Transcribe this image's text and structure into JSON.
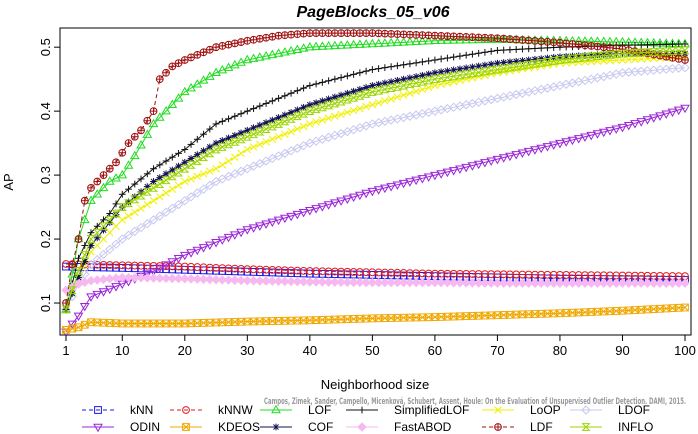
{
  "chart_data": {
    "type": "line",
    "title": "PageBlocks_05_v06",
    "xlabel": "Neighborhood size",
    "ylabel": "AP",
    "xlim": [
      1,
      100
    ],
    "ylim": [
      0.05,
      0.53
    ],
    "xticks": [
      "1",
      "10",
      "20",
      "30",
      "40",
      "50",
      "60",
      "70",
      "80",
      "90",
      "100"
    ],
    "yticks": [
      "0.1",
      "0.2",
      "0.3",
      "0.4",
      "0.5"
    ],
    "legend_placement": "bottom",
    "credit": "Campos, Zimek, Sander, Campello, Micenková, Schubert, Assent, Houle: On the Evaluation of Unsupervised Outlier Detection. DAMI, 2015.",
    "series": [
      {
        "name": "kNN",
        "color": "#1a1ae6",
        "marker": "square",
        "dash": "4,3",
        "points": [
          [
            1,
            0.157
          ],
          [
            5,
            0.156
          ],
          [
            10,
            0.155
          ],
          [
            20,
            0.152
          ],
          [
            30,
            0.149
          ],
          [
            40,
            0.146
          ],
          [
            50,
            0.144
          ],
          [
            60,
            0.142
          ],
          [
            70,
            0.14
          ],
          [
            80,
            0.138
          ],
          [
            90,
            0.137
          ],
          [
            100,
            0.136
          ]
        ]
      },
      {
        "name": "kNNW",
        "color": "#e31a1c",
        "marker": "circle",
        "dash": "4,3",
        "points": [
          [
            1,
            0.161
          ],
          [
            5,
            0.16
          ],
          [
            10,
            0.159
          ],
          [
            20,
            0.157
          ],
          [
            30,
            0.153
          ],
          [
            40,
            0.15
          ],
          [
            50,
            0.148
          ],
          [
            60,
            0.146
          ],
          [
            70,
            0.145
          ],
          [
            80,
            0.144
          ],
          [
            90,
            0.143
          ],
          [
            100,
            0.142
          ]
        ]
      },
      {
        "name": "LOF",
        "color": "#1fdc1f",
        "marker": "triangle-up",
        "dash": "",
        "points": [
          [
            1,
            0.09
          ],
          [
            3,
            0.2
          ],
          [
            5,
            0.26
          ],
          [
            8,
            0.29
          ],
          [
            10,
            0.3
          ],
          [
            12,
            0.33
          ],
          [
            15,
            0.38
          ],
          [
            18,
            0.41
          ],
          [
            20,
            0.43
          ],
          [
            25,
            0.46
          ],
          [
            30,
            0.48
          ],
          [
            35,
            0.49
          ],
          [
            40,
            0.5
          ],
          [
            50,
            0.505
          ],
          [
            60,
            0.51
          ],
          [
            70,
            0.512
          ],
          [
            80,
            0.51
          ],
          [
            90,
            0.508
          ],
          [
            100,
            0.505
          ]
        ]
      },
      {
        "name": "SimplifiedLOF",
        "color": "#111111",
        "marker": "plus",
        "dash": "",
        "points": [
          [
            1,
            0.09
          ],
          [
            3,
            0.17
          ],
          [
            5,
            0.21
          ],
          [
            8,
            0.24
          ],
          [
            10,
            0.27
          ],
          [
            15,
            0.31
          ],
          [
            20,
            0.34
          ],
          [
            25,
            0.38
          ],
          [
            30,
            0.4
          ],
          [
            35,
            0.42
          ],
          [
            40,
            0.44
          ],
          [
            50,
            0.465
          ],
          [
            60,
            0.48
          ],
          [
            70,
            0.495
          ],
          [
            80,
            0.5
          ],
          [
            90,
            0.503
          ],
          [
            100,
            0.505
          ]
        ]
      },
      {
        "name": "LoOP",
        "color": "#f0f000",
        "marker": "cross",
        "dash": "",
        "points": [
          [
            1,
            0.09
          ],
          [
            3,
            0.14
          ],
          [
            5,
            0.18
          ],
          [
            10,
            0.23
          ],
          [
            15,
            0.26
          ],
          [
            20,
            0.29
          ],
          [
            25,
            0.31
          ],
          [
            30,
            0.34
          ],
          [
            35,
            0.36
          ],
          [
            40,
            0.38
          ],
          [
            50,
            0.41
          ],
          [
            60,
            0.44
          ],
          [
            70,
            0.46
          ],
          [
            80,
            0.475
          ],
          [
            90,
            0.48
          ],
          [
            100,
            0.485
          ]
        ]
      },
      {
        "name": "LDOF",
        "color": "#c8c8f0",
        "marker": "diamond",
        "dash": "",
        "points": [
          [
            1,
            0.09
          ],
          [
            3,
            0.13
          ],
          [
            5,
            0.16
          ],
          [
            10,
            0.2
          ],
          [
            15,
            0.23
          ],
          [
            20,
            0.26
          ],
          [
            25,
            0.29
          ],
          [
            30,
            0.31
          ],
          [
            35,
            0.33
          ],
          [
            40,
            0.35
          ],
          [
            50,
            0.38
          ],
          [
            60,
            0.4
          ],
          [
            70,
            0.42
          ],
          [
            80,
            0.44
          ],
          [
            90,
            0.46
          ],
          [
            100,
            0.468
          ]
        ]
      },
      {
        "name": "ODIN",
        "color": "#9a24d8",
        "marker": "triangle-down",
        "dash": "",
        "points": [
          [
            1,
            0.055
          ],
          [
            3,
            0.08
          ],
          [
            5,
            0.11
          ],
          [
            10,
            0.13
          ],
          [
            15,
            0.15
          ],
          [
            20,
            0.175
          ],
          [
            25,
            0.195
          ],
          [
            30,
            0.215
          ],
          [
            40,
            0.245
          ],
          [
            50,
            0.275
          ],
          [
            60,
            0.3
          ],
          [
            70,
            0.325
          ],
          [
            80,
            0.35
          ],
          [
            90,
            0.375
          ],
          [
            100,
            0.405
          ]
        ]
      },
      {
        "name": "KDEOS",
        "color": "#f0a800",
        "marker": "square-x",
        "dash": "",
        "points": [
          [
            1,
            0.058
          ],
          [
            3,
            0.062
          ],
          [
            5,
            0.07
          ],
          [
            10,
            0.068
          ],
          [
            20,
            0.068
          ],
          [
            30,
            0.071
          ],
          [
            40,
            0.073
          ],
          [
            50,
            0.076
          ],
          [
            60,
            0.078
          ],
          [
            70,
            0.081
          ],
          [
            80,
            0.084
          ],
          [
            90,
            0.088
          ],
          [
            100,
            0.093
          ]
        ]
      },
      {
        "name": "COF",
        "color": "#101050",
        "marker": "asterisk",
        "dash": "",
        "points": [
          [
            1,
            0.09
          ],
          [
            3,
            0.14
          ],
          [
            5,
            0.19
          ],
          [
            10,
            0.25
          ],
          [
            15,
            0.29
          ],
          [
            20,
            0.32
          ],
          [
            25,
            0.35
          ],
          [
            30,
            0.37
          ],
          [
            35,
            0.39
          ],
          [
            40,
            0.41
          ],
          [
            50,
            0.44
          ],
          [
            60,
            0.46
          ],
          [
            70,
            0.475
          ],
          [
            80,
            0.485
          ],
          [
            90,
            0.49
          ],
          [
            100,
            0.49
          ]
        ]
      },
      {
        "name": "FastABOD",
        "color": "#f5b8f0",
        "marker": "diamond-filled",
        "dash": "",
        "points": [
          [
            1,
            0.12
          ],
          [
            3,
            0.13
          ],
          [
            5,
            0.135
          ],
          [
            10,
            0.14
          ],
          [
            20,
            0.138
          ],
          [
            30,
            0.135
          ],
          [
            40,
            0.133
          ],
          [
            50,
            0.132
          ],
          [
            60,
            0.132
          ],
          [
            70,
            0.131
          ],
          [
            80,
            0.131
          ],
          [
            90,
            0.131
          ],
          [
            100,
            0.131
          ]
        ]
      },
      {
        "name": "LDF",
        "color": "#a01010",
        "marker": "circle-plus",
        "dash": "4,3",
        "points": [
          [
            1,
            0.1
          ],
          [
            2,
            0.16
          ],
          [
            3,
            0.2
          ],
          [
            4,
            0.26
          ],
          [
            5,
            0.28
          ],
          [
            7,
            0.3
          ],
          [
            9,
            0.32
          ],
          [
            11,
            0.35
          ],
          [
            13,
            0.37
          ],
          [
            15,
            0.4
          ],
          [
            16,
            0.45
          ],
          [
            18,
            0.47
          ],
          [
            20,
            0.48
          ],
          [
            25,
            0.5
          ],
          [
            30,
            0.51
          ],
          [
            35,
            0.518
          ],
          [
            40,
            0.522
          ],
          [
            50,
            0.522
          ],
          [
            60,
            0.518
          ],
          [
            70,
            0.514
          ],
          [
            80,
            0.507
          ],
          [
            90,
            0.497
          ],
          [
            100,
            0.48
          ]
        ]
      },
      {
        "name": "INFLO",
        "color": "#9ad400",
        "marker": "hourglass",
        "dash": "",
        "points": [
          [
            1,
            0.09
          ],
          [
            3,
            0.15
          ],
          [
            5,
            0.2
          ],
          [
            10,
            0.25
          ],
          [
            15,
            0.28
          ],
          [
            20,
            0.31
          ],
          [
            25,
            0.34
          ],
          [
            30,
            0.36
          ],
          [
            35,
            0.38
          ],
          [
            40,
            0.4
          ],
          [
            50,
            0.43
          ],
          [
            60,
            0.45
          ],
          [
            70,
            0.465
          ],
          [
            80,
            0.48
          ],
          [
            90,
            0.49
          ],
          [
            100,
            0.495
          ]
        ]
      }
    ],
    "legend_layout": [
      [
        "kNN",
        "kNNW",
        "LOF",
        "SimplifiedLOF",
        "LoOP",
        "LDOF"
      ],
      [
        "ODIN",
        "KDEOS",
        "COF",
        "FastABOD",
        "LDF",
        "INFLO"
      ]
    ]
  }
}
